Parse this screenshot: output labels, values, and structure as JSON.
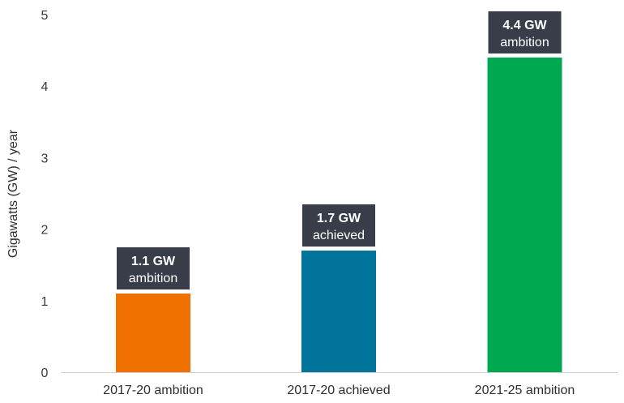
{
  "chart_data": {
    "type": "bar",
    "title": "",
    "xlabel": "",
    "ylabel": "Gigawatts (GW) / year",
    "ylim": [
      0,
      5
    ],
    "yticks": [
      "0",
      "1",
      "2",
      "3",
      "4",
      "5"
    ],
    "grid": false,
    "categories": [
      "2017-20 ambition",
      "2017-20 achieved",
      "2021-25 ambition"
    ],
    "values": [
      1.1,
      1.7,
      4.4
    ],
    "colors": [
      "#f07000",
      "#00739a",
      "#00a84f"
    ],
    "data_labels": [
      {
        "value": "1.1 GW",
        "text": "ambition"
      },
      {
        "value": "1.7 GW",
        "text": "achieved"
      },
      {
        "value": "4.4 GW",
        "text": "ambition"
      }
    ],
    "label_box_color": "#393d4a",
    "axis_color": "#d0d0d0"
  }
}
